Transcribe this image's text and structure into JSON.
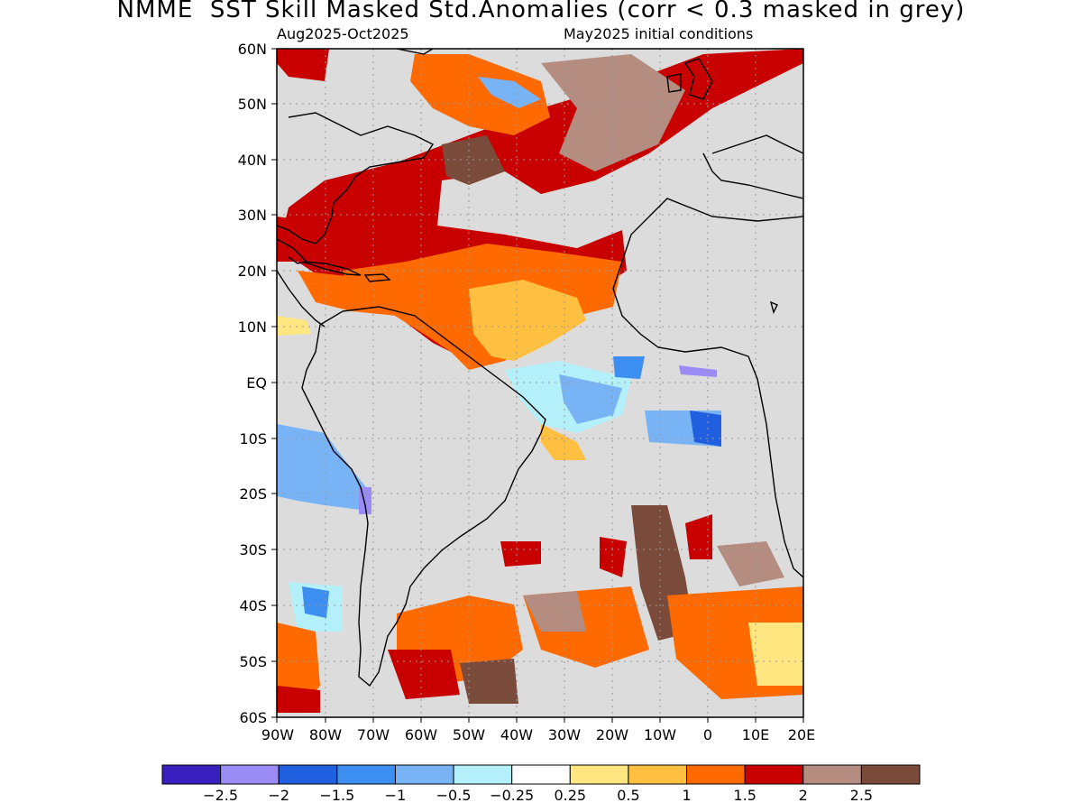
{
  "title": "NMME  SST Skill Masked Std.Anomalies (corr < 0.3 masked in grey)",
  "subtitle_left": "Aug2025-Oct2025",
  "subtitle_right": "May2025 initial conditions",
  "colors": {
    "mask_grey": "#dcdcdc",
    "land_outline": "#000000",
    "gridline": "#999999"
  },
  "axes": {
    "lat_labels": [
      "60N",
      "50N",
      "40N",
      "30N",
      "20N",
      "10N",
      "EQ",
      "10S",
      "20S",
      "30S",
      "40S",
      "50S",
      "60S"
    ],
    "lon_labels": [
      "90W",
      "80W",
      "70W",
      "60W",
      "50W",
      "40W",
      "30W",
      "20W",
      "10W",
      "0",
      "10E",
      "20E"
    ]
  },
  "colorbar": {
    "colors": [
      "#3a1fbf",
      "#9b8cf5",
      "#1f5fe0",
      "#3c8ff0",
      "#78b4f5",
      "#b4f0fa",
      "#ffffff",
      "#ffe680",
      "#ffbf40",
      "#ff6a00",
      "#c80000",
      "#b48c80",
      "#7a4a3a"
    ],
    "tick_labels": [
      "−2.5",
      "−2",
      "−1.5",
      "−1",
      "−0.5",
      "−0.25",
      "0.25",
      "0.5",
      "1",
      "1.5",
      "2",
      "2.5"
    ]
  }
}
